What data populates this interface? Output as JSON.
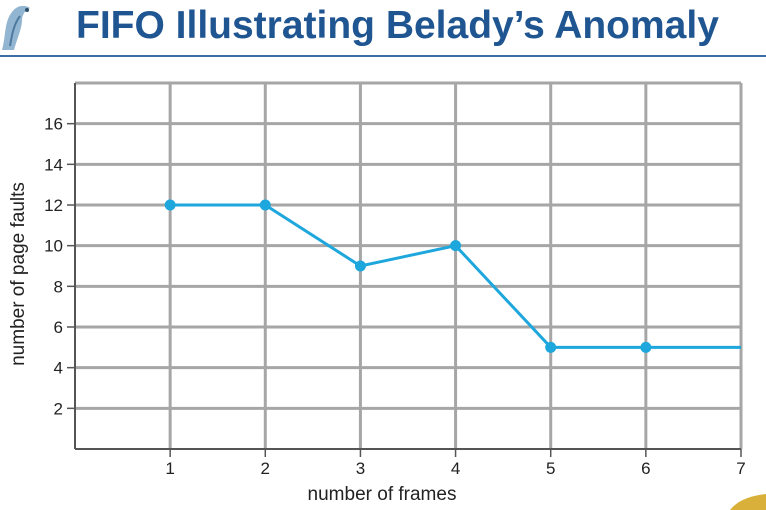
{
  "page": {
    "title": "FIFO Illustrating Belady’s Anomaly"
  },
  "chart_data": {
    "type": "line",
    "title": "",
    "xlabel": "number of frames",
    "ylabel": "number of page faults",
    "x": [
      1,
      2,
      3,
      4,
      5,
      6,
      7
    ],
    "series": [
      {
        "values": [
          12,
          12,
          9,
          10,
          5,
          5,
          5
        ]
      }
    ],
    "xlim": [
      0,
      7
    ],
    "ylim": [
      0,
      18
    ],
    "x_ticks": [
      "1",
      "2",
      "3",
      "4",
      "5",
      "6",
      "7"
    ],
    "y_ticks": [
      "2",
      "4",
      "6",
      "8",
      "10",
      "12",
      "14",
      "16"
    ],
    "grid": true,
    "markers_on": [
      1,
      2,
      3,
      4,
      5,
      6
    ],
    "colors": {
      "line": "#1ea7dd",
      "grid": "#a6a6a6",
      "title": "#1f5591"
    }
  }
}
